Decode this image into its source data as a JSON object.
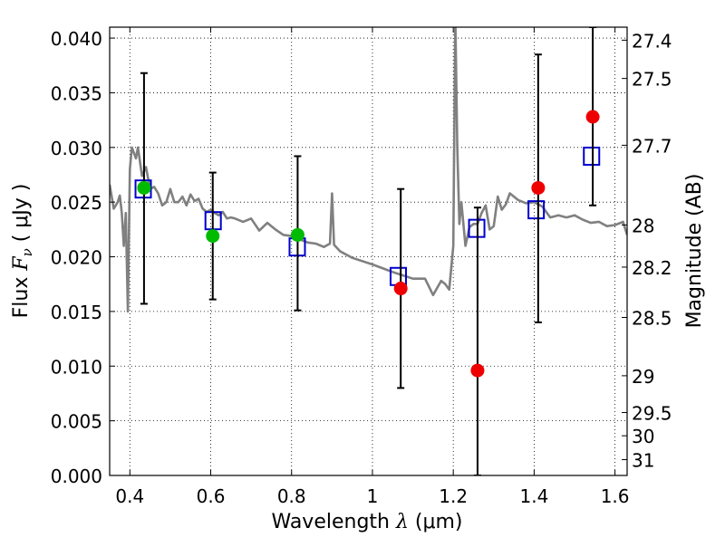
{
  "chart_data": {
    "type": "scatter",
    "title": "",
    "xlabel": {
      "prefix": "Wavelength  ",
      "symbol": "λ",
      "unit": " (μm)"
    },
    "ylabel": {
      "prefix": "Flux  ",
      "symbol": "F",
      "subscript": "ν",
      "unit": "  ( μJy )"
    },
    "y2label": "Magnitude (AB)",
    "xlim": [
      0.35,
      1.63
    ],
    "ylim": [
      0.0,
      0.041
    ],
    "x_ticks": [
      {
        "value": 0.4,
        "label": "0.4"
      },
      {
        "value": 0.6,
        "label": "0.6"
      },
      {
        "value": 0.8,
        "label": "0.8"
      },
      {
        "value": 1.0,
        "label": "1"
      },
      {
        "value": 1.2,
        "label": "1.2"
      },
      {
        "value": 1.4,
        "label": "1.4"
      },
      {
        "value": 1.6,
        "label": "1.6"
      }
    ],
    "y_ticks": [
      {
        "value": 0.0,
        "label": "0.000"
      },
      {
        "value": 0.005,
        "label": "0.005"
      },
      {
        "value": 0.01,
        "label": "0.010"
      },
      {
        "value": 0.015,
        "label": "0.015"
      },
      {
        "value": 0.02,
        "label": "0.020"
      },
      {
        "value": 0.025,
        "label": "0.025"
      },
      {
        "value": 0.03,
        "label": "0.030"
      },
      {
        "value": 0.035,
        "label": "0.035"
      },
      {
        "value": 0.04,
        "label": "0.040"
      }
    ],
    "y2_ticks": [
      "27.4",
      "27.5",
      "27.7",
      "28",
      "28.2",
      "28.5",
      "29",
      "29.5",
      "30",
      "31"
    ],
    "grid": true,
    "grid_style": "dotted",
    "colors": {
      "spectrum": "#808080",
      "model_box": "#0000cc",
      "green_point": "#00bb00",
      "red_point": "#ee0000",
      "errorbar": "#000000"
    },
    "series": [
      {
        "kind": "model_spectrum",
        "x": [
          0.35,
          0.36,
          0.37,
          0.375,
          0.38,
          0.385,
          0.39,
          0.395,
          0.4,
          0.405,
          0.41,
          0.415,
          0.42,
          0.43,
          0.44,
          0.45,
          0.46,
          0.47,
          0.48,
          0.49,
          0.5,
          0.51,
          0.52,
          0.53,
          0.54,
          0.55,
          0.56,
          0.57,
          0.58,
          0.59,
          0.6,
          0.61,
          0.62,
          0.63,
          0.64,
          0.65,
          0.66,
          0.68,
          0.7,
          0.72,
          0.74,
          0.76,
          0.78,
          0.8,
          0.82,
          0.84,
          0.86,
          0.88,
          0.895,
          0.9,
          0.905,
          0.92,
          0.95,
          1.0,
          1.05,
          1.1,
          1.13,
          1.15,
          1.17,
          1.18,
          1.19,
          1.2,
          1.205,
          1.21,
          1.215,
          1.22,
          1.23,
          1.24,
          1.25,
          1.26,
          1.27,
          1.28,
          1.29,
          1.3,
          1.31,
          1.32,
          1.33,
          1.34,
          1.36,
          1.38,
          1.4,
          1.42,
          1.44,
          1.46,
          1.48,
          1.5,
          1.52,
          1.54,
          1.56,
          1.58,
          1.6,
          1.62,
          1.63
        ],
        "y": [
          0.0266,
          0.0244,
          0.025,
          0.0256,
          0.024,
          0.021,
          0.024,
          0.015,
          0.028,
          0.03,
          0.0295,
          0.029,
          0.03,
          0.0274,
          0.0282,
          0.0262,
          0.0264,
          0.0258,
          0.0247,
          0.025,
          0.0262,
          0.025,
          0.025,
          0.0255,
          0.0247,
          0.0257,
          0.0251,
          0.0253,
          0.0244,
          0.0241,
          0.0243,
          0.024,
          0.0238,
          0.0241,
          0.0235,
          0.0236,
          0.0235,
          0.0232,
          0.0235,
          0.0224,
          0.0231,
          0.0225,
          0.022,
          0.0219,
          0.0216,
          0.0213,
          0.0212,
          0.0209,
          0.0212,
          0.0258,
          0.0211,
          0.0205,
          0.0199,
          0.0193,
          0.0186,
          0.018,
          0.018,
          0.0165,
          0.0178,
          0.0175,
          0.017,
          0.021,
          0.042,
          0.03,
          0.023,
          0.025,
          0.021,
          0.0227,
          0.023,
          0.023,
          0.024,
          0.0247,
          0.0225,
          0.0228,
          0.0255,
          0.0243,
          0.0248,
          0.0258,
          0.0252,
          0.0249,
          0.025,
          0.0246,
          0.0236,
          0.0238,
          0.0236,
          0.0238,
          0.0234,
          0.0231,
          0.0232,
          0.0228,
          0.0229,
          0.0232,
          0.022
        ]
      },
      {
        "kind": "model_photometry",
        "x": [
          0.433,
          0.606,
          0.814,
          1.064,
          1.258,
          1.405,
          1.542
        ],
        "y": [
          0.0262,
          0.0233,
          0.0209,
          0.0182,
          0.0226,
          0.0243,
          0.0292
        ]
      },
      {
        "kind": "observed_green",
        "x": [
          0.435,
          0.605,
          0.815
        ],
        "y": [
          0.0263,
          0.0219,
          0.022
        ],
        "yerr_low": [
          0.0157,
          0.0161,
          0.0151
        ],
        "yerr_high": [
          0.0368,
          0.0277,
          0.0292
        ]
      },
      {
        "kind": "observed_red",
        "x": [
          1.07,
          1.26,
          1.41,
          1.545
        ],
        "y": [
          0.0171,
          0.0096,
          0.0263,
          0.0328
        ],
        "yerr_low": [
          0.008,
          0.0,
          0.014,
          0.0247
        ],
        "yerr_high": [
          0.0262,
          0.0245,
          0.0385,
          0.041
        ]
      }
    ]
  }
}
